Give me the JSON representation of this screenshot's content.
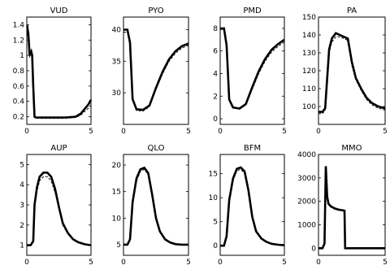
{
  "chart_data": [
    {
      "type": "line",
      "title": "VUD",
      "xlim": [
        0,
        5
      ],
      "ylim": [
        0.1,
        1.5
      ],
      "xticks": [
        0,
        5
      ],
      "yticks": [
        0.2,
        0.4,
        0.6,
        0.8,
        1,
        1.2,
        1.4
      ],
      "series": [
        {
          "x": [
            0,
            0.03,
            0.12,
            0.22,
            0.35,
            0.42,
            0.5,
            0.6,
            0.7,
            1,
            2,
            3,
            3.8,
            4.2,
            4.5,
            4.8,
            5
          ],
          "y": [
            1.38,
            1.38,
            1.28,
            1.0,
            1.05,
            1.0,
            0.6,
            0.2,
            0.19,
            0.19,
            0.19,
            0.19,
            0.2,
            0.24,
            0.3,
            0.36,
            0.42
          ]
        },
        {
          "x": [
            0,
            0.03,
            0.12,
            0.22,
            0.35,
            0.42,
            0.5,
            0.6,
            0.7,
            1,
            2,
            3,
            3.8,
            4.2,
            4.5,
            4.8,
            5
          ],
          "y": [
            1.32,
            1.32,
            1.22,
            0.98,
            1.0,
            0.97,
            0.55,
            0.19,
            0.18,
            0.18,
            0.18,
            0.18,
            0.19,
            0.22,
            0.27,
            0.31,
            0.35
          ]
        }
      ]
    },
    {
      "type": "line",
      "title": "PYO",
      "xlim": [
        0,
        5
      ],
      "ylim": [
        25,
        42
      ],
      "xticks": [
        0,
        5
      ],
      "yticks": [
        30,
        35,
        40
      ],
      "series": [
        {
          "x": [
            0,
            0.3,
            0.5,
            0.7,
            1,
            1.5,
            2,
            2.5,
            3,
            3.5,
            4,
            4.5,
            5
          ],
          "y": [
            40,
            40,
            38,
            29,
            27.4,
            27.3,
            28,
            30.8,
            33.3,
            35.3,
            36.6,
            37.4,
            37.8
          ]
        },
        {
          "x": [
            0,
            0.3,
            0.5,
            0.7,
            1,
            1.5,
            2,
            2.5,
            3,
            3.5,
            4,
            4.5,
            5
          ],
          "y": [
            39.6,
            39.6,
            37.5,
            28.8,
            27.2,
            27.1,
            27.8,
            30.5,
            33.0,
            35.0,
            36.3,
            37.1,
            37.5
          ]
        }
      ]
    },
    {
      "type": "line",
      "title": "PMD",
      "xlim": [
        0,
        5
      ],
      "ylim": [
        -0.5,
        9
      ],
      "xticks": [
        0,
        5
      ],
      "yticks": [
        0,
        2,
        4,
        6,
        8
      ],
      "series": [
        {
          "x": [
            0,
            0.3,
            0.5,
            0.7,
            1,
            1.5,
            2,
            2.5,
            3,
            3.5,
            4,
            4.5,
            5
          ],
          "y": [
            8,
            8,
            6.5,
            1.7,
            1.0,
            0.9,
            1.3,
            2.8,
            4.2,
            5.3,
            6.1,
            6.6,
            7.0
          ]
        },
        {
          "x": [
            0,
            0.3,
            0.5,
            0.7,
            1,
            1.5,
            2,
            2.5,
            3,
            3.5,
            4,
            4.5,
            5
          ],
          "y": [
            7.9,
            7.9,
            6.3,
            1.6,
            0.95,
            0.85,
            1.2,
            2.6,
            4.0,
            5.1,
            5.9,
            6.4,
            6.8
          ]
        }
      ]
    },
    {
      "type": "line",
      "title": "PA",
      "xlim": [
        0,
        5
      ],
      "ylim": [
        90,
        150
      ],
      "xticks": [
        0,
        5
      ],
      "yticks": [
        100,
        110,
        120,
        130,
        140,
        150
      ],
      "series": [
        {
          "x": [
            0,
            0.3,
            0.5,
            0.8,
            1.0,
            1.3,
            1.6,
            1.9,
            2.2,
            2.5,
            2.8,
            3.2,
            3.6,
            4,
            4.5,
            5
          ],
          "y": [
            97,
            97,
            99,
            132,
            138,
            141,
            140,
            139,
            138,
            125,
            116,
            110,
            105,
            102,
            100,
            99
          ]
        },
        {
          "x": [
            0,
            0.3,
            0.5,
            0.8,
            1.0,
            1.3,
            1.6,
            1.9,
            2.2,
            2.5,
            2.8,
            3.2,
            3.6,
            4,
            4.5,
            5
          ],
          "y": [
            96,
            96,
            98,
            130,
            136,
            139,
            139,
            138,
            137,
            123,
            115,
            109,
            104,
            101,
            99,
            98
          ]
        }
      ]
    },
    {
      "type": "line",
      "title": "AUP",
      "xlim": [
        0,
        5
      ],
      "ylim": [
        0.5,
        5.5
      ],
      "xticks": [
        0,
        5
      ],
      "yticks": [
        1,
        2,
        3,
        4,
        5
      ],
      "series": [
        {
          "x": [
            0,
            0.3,
            0.5,
            0.6,
            0.8,
            1,
            1.3,
            1.6,
            1.9,
            2.2,
            2.5,
            2.8,
            3.2,
            3.6,
            4,
            4.5,
            5
          ],
          "y": [
            1,
            1,
            1.2,
            3.0,
            3.9,
            4.4,
            4.6,
            4.6,
            4.4,
            3.8,
            2.9,
            2.1,
            1.6,
            1.3,
            1.15,
            1.05,
            1.0
          ]
        },
        {
          "x": [
            0,
            0.3,
            0.5,
            0.6,
            0.8,
            1,
            1.3,
            1.6,
            1.9,
            2.2,
            2.5,
            2.8,
            3.2,
            3.6,
            4,
            4.5,
            5
          ],
          "y": [
            1,
            1,
            1.15,
            2.8,
            3.7,
            4.2,
            4.4,
            4.4,
            4.2,
            3.6,
            2.8,
            2.0,
            1.55,
            1.28,
            1.13,
            1.04,
            1.0
          ]
        }
      ]
    },
    {
      "type": "line",
      "title": "QLO",
      "xlim": [
        0,
        5
      ],
      "ylim": [
        3,
        22
      ],
      "xticks": [
        0,
        5
      ],
      "yticks": [
        5,
        10,
        15,
        20
      ],
      "series": [
        {
          "x": [
            0,
            0.3,
            0.5,
            0.7,
            1,
            1.3,
            1.6,
            1.9,
            2.2,
            2.5,
            2.8,
            3.2,
            3.6,
            4,
            4.5,
            5
          ],
          "y": [
            5,
            5,
            6,
            13,
            17.5,
            19.2,
            19.5,
            18.5,
            14.5,
            10,
            7.5,
            6,
            5.4,
            5.1,
            5,
            5
          ]
        },
        {
          "x": [
            0,
            0.3,
            0.5,
            0.7,
            1,
            1.3,
            1.6,
            1.9,
            2.2,
            2.5,
            2.8,
            3.2,
            3.6,
            4,
            4.5,
            5
          ],
          "y": [
            5,
            5,
            5.8,
            12.5,
            17.0,
            18.8,
            19.2,
            18.2,
            14.2,
            9.8,
            7.3,
            5.9,
            5.3,
            5.05,
            5,
            5
          ]
        }
      ]
    },
    {
      "type": "line",
      "title": "BFM",
      "xlim": [
        0,
        5
      ],
      "ylim": [
        -2,
        19
      ],
      "xticks": [
        0,
        5
      ],
      "yticks": [
        0,
        5,
        10,
        15
      ],
      "series": [
        {
          "x": [
            0,
            0.3,
            0.5,
            0.7,
            1,
            1.3,
            1.6,
            1.9,
            2.2,
            2.5,
            2.8,
            3.2,
            3.6,
            4,
            4.5,
            5
          ],
          "y": [
            0,
            0,
            2,
            9.5,
            14,
            16,
            16.3,
            15.5,
            11.5,
            6,
            3,
            1.5,
            0.8,
            0.4,
            0.2,
            0.1
          ]
        },
        {
          "x": [
            0,
            0.3,
            0.5,
            0.7,
            1,
            1.3,
            1.6,
            1.9,
            2.2,
            2.5,
            2.8,
            3.2,
            3.6,
            4,
            4.5,
            5
          ],
          "y": [
            0,
            0,
            1.8,
            9.0,
            13.5,
            15.6,
            15.9,
            15.1,
            11.2,
            5.8,
            2.9,
            1.4,
            0.7,
            0.35,
            0.15,
            0.1
          ]
        }
      ]
    },
    {
      "type": "line",
      "title": "MMO",
      "xlim": [
        0,
        5
      ],
      "ylim": [
        -300,
        4000
      ],
      "xticks": [
        0,
        5
      ],
      "yticks": [
        0,
        1000,
        2000,
        3000,
        4000
      ],
      "series": [
        {
          "x": [
            0,
            0.3,
            0.45,
            0.55,
            0.65,
            0.75,
            0.9,
            1.2,
            1.5,
            1.8,
            1.95,
            2.0,
            2.6,
            3,
            4,
            5
          ],
          "y": [
            0,
            0,
            200,
            3500,
            2200,
            1900,
            1800,
            1700,
            1650,
            1620,
            1600,
            0,
            0,
            0,
            0,
            0
          ]
        },
        {
          "x": [
            0,
            0.3,
            0.45,
            0.55,
            0.65,
            0.75,
            0.9,
            1.2,
            1.5,
            1.8,
            1.95,
            2.0,
            2.6,
            3,
            4,
            5
          ],
          "y": [
            0,
            0,
            180,
            3300,
            2100,
            1850,
            1760,
            1670,
            1620,
            1600,
            1580,
            0,
            0,
            0,
            0,
            0
          ]
        }
      ]
    }
  ]
}
